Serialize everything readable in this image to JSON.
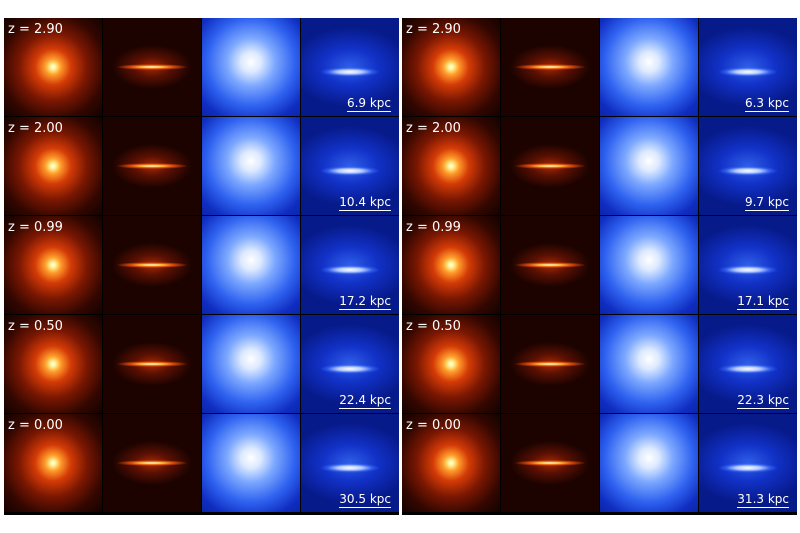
{
  "left_simulation": {
    "rows": [
      {
        "redshift": "z = 2.90",
        "scale": "6.9 kpc"
      },
      {
        "redshift": "z = 2.00",
        "scale": "10.4 kpc"
      },
      {
        "redshift": "z = 0.99",
        "scale": "17.2 kpc"
      },
      {
        "redshift": "z = 0.50",
        "scale": "22.4 kpc"
      },
      {
        "redshift": "z = 0.00",
        "scale": "30.5 kpc"
      }
    ]
  },
  "right_simulation": {
    "rows": [
      {
        "redshift": "z = 2.90",
        "scale": "6.3 kpc"
      },
      {
        "redshift": "z = 2.00",
        "scale": "9.7 kpc"
      },
      {
        "redshift": "z = 0.99",
        "scale": "17.1 kpc"
      },
      {
        "redshift": "z = 0.50",
        "scale": "22.3 kpc"
      },
      {
        "redshift": "z = 0.00",
        "scale": "31.3 kpc"
      }
    ]
  },
  "colors": {
    "stellar_map": "#d43b07",
    "gas_map": "#2f62f0",
    "label_text": "#ffffff",
    "background": "#ffffff"
  }
}
